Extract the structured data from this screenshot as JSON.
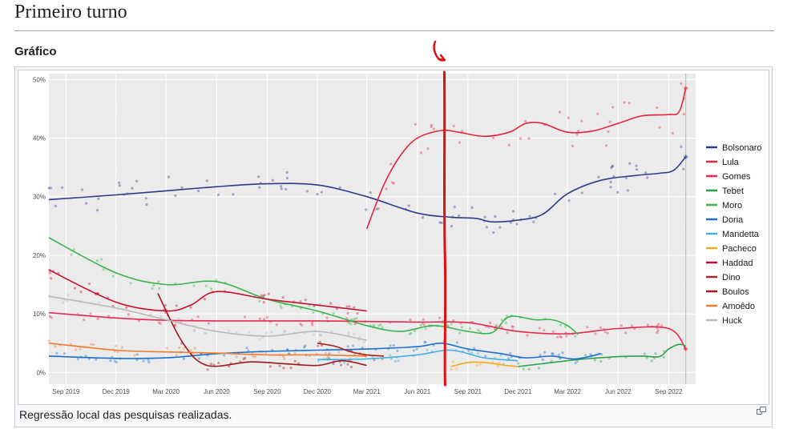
{
  "page": {
    "title": "Primeiro turno",
    "section": "Gráfico",
    "caption": "Regressão local das pesquisas realizadas."
  },
  "chart_data": {
    "type": "line",
    "title": "",
    "xlabel": "",
    "ylabel": "",
    "x_range": [
      "2019-08-01",
      "2022-10-20"
    ],
    "ylim": [
      -2,
      51
    ],
    "y_ticks": [
      0,
      10,
      20,
      30,
      40,
      50
    ],
    "y_tick_labels": [
      "0%",
      "10%",
      "20%",
      "30%",
      "40%",
      "50%"
    ],
    "x_ticks": [
      "2019-09-01",
      "2019-12-01",
      "2020-03-01",
      "2020-06-01",
      "2020-09-01",
      "2020-12-01",
      "2021-03-01",
      "2021-06-01",
      "2021-09-01",
      "2021-12-01",
      "2022-03-01",
      "2022-06-01",
      "2022-09-01"
    ],
    "x_tick_labels": [
      "Sep 2019",
      "Dec 2019",
      "Mar 2020",
      "Jun 2020",
      "Sep 2020",
      "Dec 2020",
      "Mar 2021",
      "Jun 2021",
      "Sep 2021",
      "Dec 2021",
      "Mar 2022",
      "Jun 2022",
      "Sep 2022"
    ],
    "grid": true,
    "legend_position": "right",
    "election_marker": "2022-10-02",
    "annotation": {
      "type": "vertical-line",
      "x": "2021-07-20",
      "color": "#e01010",
      "arrow": true
    },
    "series": [
      {
        "name": "Bolsonaro",
        "color": "#2e3a8c",
        "points": [
          [
            "2019-08-01",
            29.5
          ],
          [
            "2019-12-01",
            30.3
          ],
          [
            "2020-03-01",
            31
          ],
          [
            "2020-06-01",
            31.7
          ],
          [
            "2020-09-01",
            32.2
          ],
          [
            "2020-12-01",
            32
          ],
          [
            "2021-03-01",
            30
          ],
          [
            "2021-06-01",
            27.2
          ],
          [
            "2021-08-01",
            26.5
          ],
          [
            "2021-09-15",
            26.3
          ],
          [
            "2021-10-15",
            25.7
          ],
          [
            "2021-12-01",
            26
          ],
          [
            "2022-01-15",
            27
          ],
          [
            "2022-03-01",
            30.5
          ],
          [
            "2022-05-01",
            32.8
          ],
          [
            "2022-07-01",
            33.6
          ],
          [
            "2022-08-15",
            34
          ],
          [
            "2022-09-10",
            34.5
          ],
          [
            "2022-10-02",
            36.8
          ]
        ]
      },
      {
        "name": "Lula",
        "color": "#e3283e",
        "points": [
          [
            "2021-03-01",
            24.5
          ],
          [
            "2021-04-01",
            32
          ],
          [
            "2021-05-01",
            37
          ],
          [
            "2021-06-01",
            40
          ],
          [
            "2021-07-15",
            41.3
          ],
          [
            "2021-08-15",
            41
          ],
          [
            "2021-10-01",
            40.3
          ],
          [
            "2021-11-15",
            41
          ],
          [
            "2021-12-15",
            42.5
          ],
          [
            "2022-01-15",
            42.5
          ],
          [
            "2022-03-01",
            41
          ],
          [
            "2022-04-15",
            41.2
          ],
          [
            "2022-06-01",
            42.5
          ],
          [
            "2022-07-15",
            43.8
          ],
          [
            "2022-09-01",
            44
          ],
          [
            "2022-09-20",
            44.5
          ],
          [
            "2022-10-02",
            48.5
          ]
        ]
      },
      {
        "name": "Gomes",
        "color": "#e8294d",
        "points": [
          [
            "2019-08-01",
            10.2
          ],
          [
            "2019-12-01",
            9.3
          ],
          [
            "2020-03-01",
            8.9
          ],
          [
            "2020-06-01",
            8.8
          ],
          [
            "2020-09-01",
            8.8
          ],
          [
            "2020-12-01",
            8.8
          ],
          [
            "2021-03-01",
            8.7
          ],
          [
            "2021-06-01",
            8.6
          ],
          [
            "2021-09-01",
            8.5
          ],
          [
            "2021-12-01",
            7
          ],
          [
            "2022-03-01",
            6.6
          ],
          [
            "2022-06-01",
            7.5
          ],
          [
            "2022-09-01",
            7.5
          ],
          [
            "2022-10-02",
            4
          ]
        ]
      },
      {
        "name": "Tebet",
        "color": "#27a24a",
        "points": [
          [
            "2021-12-01",
            1
          ],
          [
            "2022-02-01",
            1.7
          ],
          [
            "2022-04-01",
            2.3
          ],
          [
            "2022-06-01",
            2.7
          ],
          [
            "2022-07-15",
            2.8
          ],
          [
            "2022-08-15",
            2.7
          ],
          [
            "2022-09-01",
            4
          ],
          [
            "2022-09-20",
            4.8
          ],
          [
            "2022-10-02",
            4.5
          ]
        ]
      },
      {
        "name": "Moro",
        "color": "#3ab54a",
        "points": [
          [
            "2019-08-01",
            23
          ],
          [
            "2019-12-01",
            17
          ],
          [
            "2020-03-01",
            15
          ],
          [
            "2020-06-01",
            15.5
          ],
          [
            "2020-09-01",
            12.5
          ],
          [
            "2020-12-01",
            10.5
          ],
          [
            "2021-03-01",
            8
          ],
          [
            "2021-05-01",
            7
          ],
          [
            "2021-07-01",
            8
          ],
          [
            "2021-09-01",
            7
          ],
          [
            "2021-10-15",
            6.8
          ],
          [
            "2021-11-15",
            9.5
          ],
          [
            "2022-01-01",
            9
          ],
          [
            "2022-02-01",
            9
          ],
          [
            "2022-03-01",
            8
          ],
          [
            "2022-03-20",
            6.5
          ]
        ]
      },
      {
        "name": "Doria",
        "color": "#1a6fd0",
        "points": [
          [
            "2019-08-01",
            2.8
          ],
          [
            "2019-12-01",
            2.4
          ],
          [
            "2020-03-01",
            2.5
          ],
          [
            "2020-06-01",
            3.2
          ],
          [
            "2020-09-01",
            3.6
          ],
          [
            "2020-12-01",
            3.8
          ],
          [
            "2021-03-01",
            4
          ],
          [
            "2021-06-01",
            4.4
          ],
          [
            "2021-07-15",
            5
          ],
          [
            "2021-09-01",
            4
          ],
          [
            "2021-11-01",
            3.2
          ],
          [
            "2021-12-15",
            2.5
          ],
          [
            "2022-02-01",
            2.8
          ],
          [
            "2022-03-15",
            2.3
          ],
          [
            "2022-05-01",
            3.2
          ]
        ]
      },
      {
        "name": "Mandetta",
        "color": "#3fb0e8",
        "points": [
          [
            "2020-12-01",
            2.2
          ],
          [
            "2021-03-01",
            2.3
          ],
          [
            "2021-06-01",
            3
          ],
          [
            "2021-08-01",
            3.8
          ],
          [
            "2021-10-01",
            2.5
          ],
          [
            "2021-12-01",
            2
          ]
        ]
      },
      {
        "name": "Pacheco",
        "color": "#f7a81c",
        "points": [
          [
            "2021-08-01",
            1
          ],
          [
            "2021-09-01",
            1.7
          ],
          [
            "2021-10-01",
            1.7
          ],
          [
            "2021-11-01",
            1.3
          ],
          [
            "2021-12-01",
            1
          ]
        ]
      },
      {
        "name": "Haddad",
        "color": "#c8102e",
        "points": [
          [
            "2019-08-01",
            17.5
          ],
          [
            "2019-12-01",
            12
          ],
          [
            "2020-03-01",
            10.5
          ],
          [
            "2020-04-15",
            11.5
          ],
          [
            "2020-06-01",
            13.8
          ],
          [
            "2020-09-01",
            12.5
          ],
          [
            "2020-12-01",
            11.5
          ],
          [
            "2021-03-01",
            10.5
          ]
        ]
      },
      {
        "name": "Dino",
        "color": "#b01e1e",
        "points": [
          [
            "2020-12-01",
            5
          ],
          [
            "2021-01-01",
            4.5
          ],
          [
            "2021-02-01",
            3.5
          ],
          [
            "2021-03-01",
            3
          ],
          [
            "2021-04-01",
            2.8
          ]
        ]
      },
      {
        "name": "Boulos",
        "color": "#9e1a1a",
        "points": [
          [
            "2020-02-15",
            13.5
          ],
          [
            "2020-04-01",
            5
          ],
          [
            "2020-05-15",
            1.2
          ],
          [
            "2020-08-01",
            1.8
          ],
          [
            "2020-10-01",
            1.5
          ],
          [
            "2020-12-01",
            1.2
          ],
          [
            "2021-01-15",
            2
          ],
          [
            "2021-03-01",
            1.2
          ]
        ]
      },
      {
        "name": "Amoêdo",
        "color": "#f07b2c",
        "points": [
          [
            "2019-08-01",
            5
          ],
          [
            "2019-12-01",
            3.8
          ],
          [
            "2020-03-01",
            3.5
          ],
          [
            "2020-06-01",
            3.3
          ],
          [
            "2020-09-01",
            3
          ],
          [
            "2020-12-01",
            3
          ],
          [
            "2021-03-01",
            2.8
          ]
        ]
      },
      {
        "name": "Huck",
        "color": "#b9b9b9",
        "points": [
          [
            "2019-08-01",
            13
          ],
          [
            "2019-12-01",
            11
          ],
          [
            "2020-03-01",
            9
          ],
          [
            "2020-06-01",
            7
          ],
          [
            "2020-09-01",
            6.2
          ],
          [
            "2020-12-01",
            7
          ],
          [
            "2021-03-01",
            5.5
          ]
        ]
      }
    ]
  }
}
